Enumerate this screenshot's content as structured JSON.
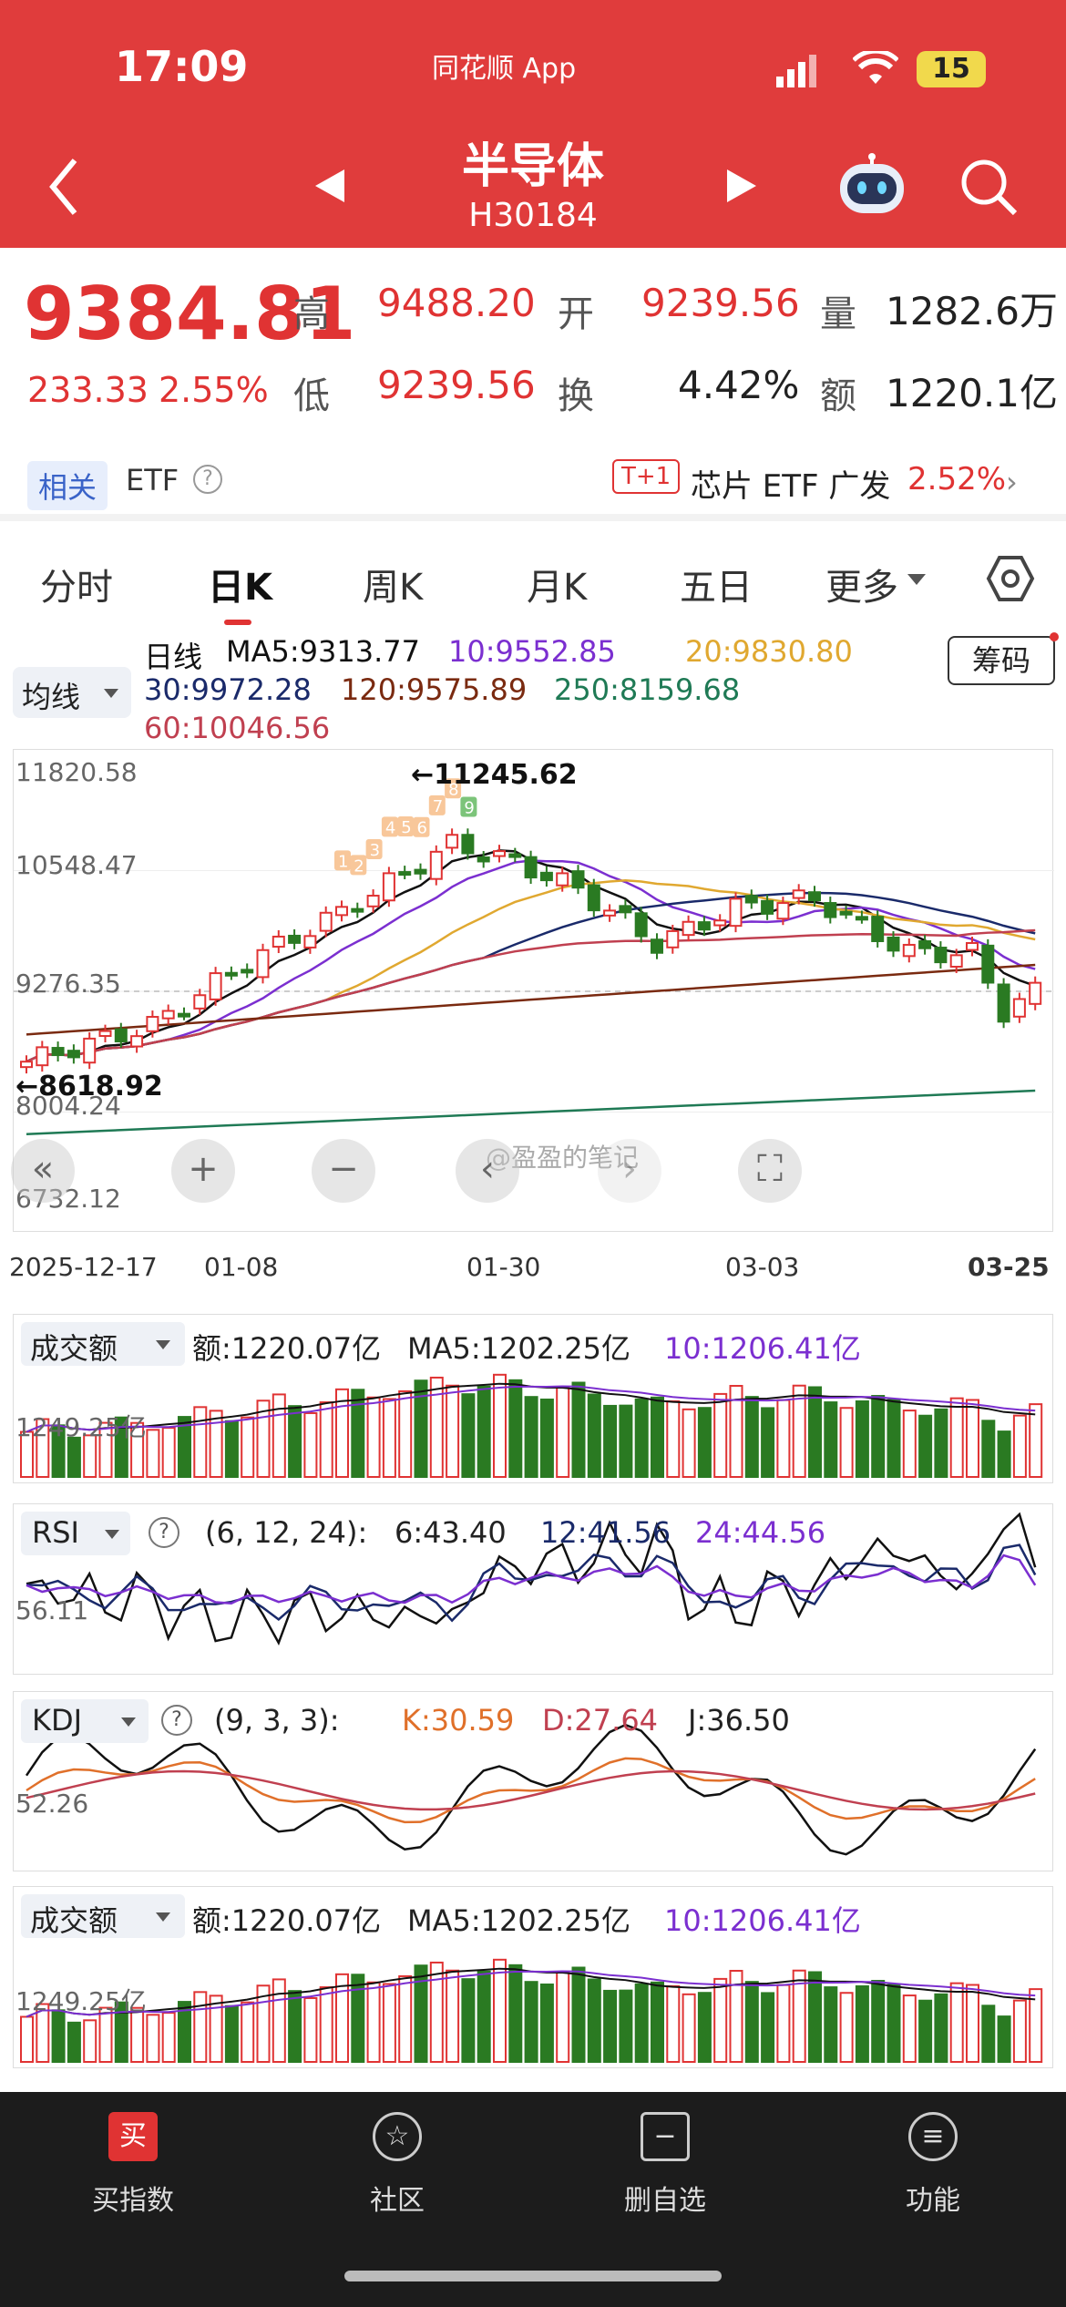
{
  "status_bar": {
    "time": "17:09",
    "carrier_label": "同花顺 App",
    "battery": "15"
  },
  "header": {
    "title": "半导体",
    "code": "H30184"
  },
  "quote": {
    "price": "9384.81",
    "change": "233.33",
    "change_pct": "2.55%",
    "high_label": "高",
    "high": "9488.20",
    "open_label": "开",
    "open": "9239.56",
    "volume_label": "量",
    "volume": "1282.6万",
    "low_label": "低",
    "low": "9239.56",
    "turnover_label": "换",
    "turnover": "4.42%",
    "amount_label": "额",
    "amount": "1220.1亿"
  },
  "related": {
    "tag": "相关",
    "etf_label": "ETF",
    "etf_box": "T+1",
    "etf_name": "芯片 ETF 广发",
    "etf_change": "2.52%"
  },
  "tabs": {
    "items": [
      "分时",
      "日K",
      "周K",
      "月K",
      "五日",
      "更多"
    ],
    "active": "日K"
  },
  "indicator_select": "均线",
  "chip_button": "筹码",
  "ma_legend": {
    "period": "日线",
    "ma5": "MA5:9313.77",
    "ma10": "10:9552.85",
    "ma20": "20:9830.80",
    "ma30": "30:9972.28",
    "ma120": "120:9575.89",
    "ma250": "250:8159.68",
    "ma60": "60:10046.56"
  },
  "main_chart": {
    "y_ticks": [
      "11820.58",
      "10548.47",
      "9276.35",
      "8004.24",
      "6732.12"
    ],
    "max_label": "←11245.62",
    "min_label": "←8618.92",
    "x_ticks": [
      "2025-12-17",
      "01-08",
      "01-30",
      "03-03",
      "03-25"
    ],
    "seq_labels": [
      "1",
      "2",
      "3",
      "4",
      "5",
      "6",
      "7",
      "8",
      "9"
    ],
    "watermark": "@盈盈的笔记"
  },
  "vol_panel": {
    "select": "成交额",
    "amount": "额:1220.07亿",
    "ma5": "MA5:1202.25亿",
    "ma10": "10:1206.41亿",
    "y_tick": "1249.25亿"
  },
  "rsi_panel": {
    "select": "RSI",
    "params": "(6, 12, 24):",
    "rsi6": "6:43.40",
    "rsi12": "12:41.56",
    "rsi24": "24:44.56",
    "y_tick": "56.11"
  },
  "kdj_panel": {
    "select": "KDJ",
    "params": "(9, 3, 3):",
    "k": "K:30.59",
    "d": "D:27.64",
    "j": "J:36.50",
    "y_tick": "52.26"
  },
  "vol_panel2": {
    "select": "成交额",
    "amount": "额:1220.07亿",
    "ma5": "MA5:1202.25亿",
    "ma10": "10:1206.41亿",
    "y_tick": "1249.25亿"
  },
  "bottom_nav": {
    "items": [
      {
        "label": "买指数",
        "icon_text": "买"
      },
      {
        "label": "社区",
        "icon_text": "☆"
      },
      {
        "label": "删自选",
        "icon_text": "−"
      },
      {
        "label": "功能",
        "icon_text": "≡"
      }
    ]
  },
  "colors": {
    "up": "#e03333",
    "down": "#2a7a22",
    "header": "#e03c3c",
    "ma5": "#111111",
    "ma10": "#7b2fd0",
    "ma20": "#e0a830",
    "ma30": "#1a2a6a",
    "ma120": "#7a2a10",
    "ma250": "#1f7a55",
    "ma60": "#c04050"
  }
}
